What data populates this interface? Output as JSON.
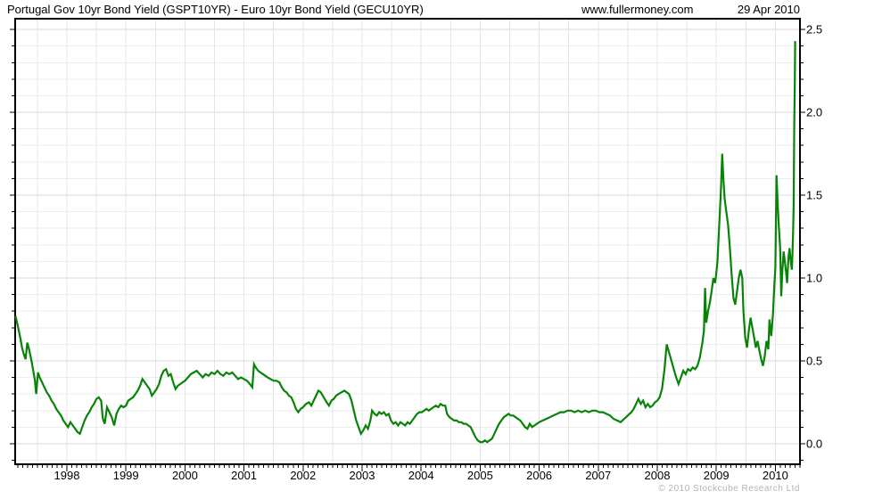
{
  "header": {
    "title": "Portugal Gov 10yr Bond Yield (GSPT10YR) - Euro 10yr Bond Yield (GECU10YR)",
    "site": "www.fullermoney.com",
    "date": "29 Apr 2010"
  },
  "footer": {
    "copyright": "© 2010 Stockcube Research Ltd"
  },
  "chart_data": {
    "type": "line",
    "title": "Portugal Gov 10yr Bond Yield (GSPT10YR) - Euro 10yr Bond Yield (GECU10YR)",
    "series_name": "GSPT10YR minus GECU10YR yield spread",
    "xlabel": "",
    "ylabel": "",
    "y_axis_side": "right",
    "grid": "on",
    "legend": "none",
    "line_color": "#078307",
    "frame_color": "#000000",
    "grid_minor_color": "#ededed",
    "grid_major_color": "#d8d8d8",
    "vgrid_color": "#e4e4e4",
    "x_domain": [
      1997.124,
      2010.417
    ],
    "y_domain": [
      -0.124,
      2.565
    ],
    "x_ticks": [
      "1998",
      "1999",
      "2000",
      "2001",
      "2002",
      "2003",
      "2004",
      "2005",
      "2006",
      "2007",
      "2008",
      "2009",
      "2010"
    ],
    "x_tick_years": [
      1998,
      1999,
      2000,
      2001,
      2002,
      2003,
      2004,
      2005,
      2006,
      2007,
      2008,
      2009,
      2010
    ],
    "y_ticks": [
      "0.0",
      "0.5",
      "1.0",
      "1.5",
      "2.0",
      "2.5"
    ],
    "y_tick_values": [
      0,
      0.5,
      1,
      1.5,
      2,
      2.5
    ],
    "points": [
      [
        1997.13,
        0.77
      ],
      [
        1997.17,
        0.71
      ],
      [
        1997.21,
        0.64
      ],
      [
        1997.24,
        0.58
      ],
      [
        1997.27,
        0.54
      ],
      [
        1997.3,
        0.51
      ],
      [
        1997.33,
        0.61
      ],
      [
        1997.36,
        0.57
      ],
      [
        1997.4,
        0.5
      ],
      [
        1997.43,
        0.44
      ],
      [
        1997.46,
        0.38
      ],
      [
        1997.48,
        0.3
      ],
      [
        1997.51,
        0.43
      ],
      [
        1997.54,
        0.4
      ],
      [
        1997.58,
        0.37
      ],
      [
        1997.62,
        0.34
      ],
      [
        1997.66,
        0.31
      ],
      [
        1997.7,
        0.29
      ],
      [
        1997.74,
        0.26
      ],
      [
        1997.78,
        0.24
      ],
      [
        1997.82,
        0.21
      ],
      [
        1997.86,
        0.19
      ],
      [
        1997.9,
        0.17
      ],
      [
        1997.94,
        0.14
      ],
      [
        1997.98,
        0.12
      ],
      [
        1998.02,
        0.1
      ],
      [
        1998.06,
        0.13
      ],
      [
        1998.1,
        0.11
      ],
      [
        1998.14,
        0.09
      ],
      [
        1998.18,
        0.07
      ],
      [
        1998.22,
        0.06
      ],
      [
        1998.26,
        0.1
      ],
      [
        1998.3,
        0.14
      ],
      [
        1998.34,
        0.17
      ],
      [
        1998.38,
        0.19
      ],
      [
        1998.42,
        0.22
      ],
      [
        1998.46,
        0.24
      ],
      [
        1998.5,
        0.27
      ],
      [
        1998.54,
        0.28
      ],
      [
        1998.58,
        0.26
      ],
      [
        1998.61,
        0.15
      ],
      [
        1998.64,
        0.12
      ],
      [
        1998.68,
        0.22
      ],
      [
        1998.72,
        0.19
      ],
      [
        1998.76,
        0.16
      ],
      [
        1998.8,
        0.11
      ],
      [
        1998.84,
        0.18
      ],
      [
        1998.88,
        0.21
      ],
      [
        1998.92,
        0.23
      ],
      [
        1998.96,
        0.22
      ],
      [
        1999.0,
        0.23
      ],
      [
        1999.04,
        0.26
      ],
      [
        1999.08,
        0.27
      ],
      [
        1999.12,
        0.28
      ],
      [
        1999.16,
        0.3
      ],
      [
        1999.2,
        0.32
      ],
      [
        1999.24,
        0.35
      ],
      [
        1999.28,
        0.39
      ],
      [
        1999.32,
        0.37
      ],
      [
        1999.36,
        0.35
      ],
      [
        1999.4,
        0.33
      ],
      [
        1999.44,
        0.29
      ],
      [
        1999.48,
        0.31
      ],
      [
        1999.52,
        0.33
      ],
      [
        1999.56,
        0.36
      ],
      [
        1999.6,
        0.41
      ],
      [
        1999.64,
        0.44
      ],
      [
        1999.68,
        0.45
      ],
      [
        1999.72,
        0.41
      ],
      [
        1999.76,
        0.42
      ],
      [
        1999.8,
        0.37
      ],
      [
        1999.84,
        0.33
      ],
      [
        1999.88,
        0.35
      ],
      [
        1999.92,
        0.36
      ],
      [
        1999.96,
        0.37
      ],
      [
        2000.0,
        0.38
      ],
      [
        2000.05,
        0.4
      ],
      [
        2000.1,
        0.42
      ],
      [
        2000.15,
        0.43
      ],
      [
        2000.2,
        0.44
      ],
      [
        2000.25,
        0.42
      ],
      [
        2000.3,
        0.4
      ],
      [
        2000.35,
        0.42
      ],
      [
        2000.4,
        0.41
      ],
      [
        2000.45,
        0.43
      ],
      [
        2000.5,
        0.42
      ],
      [
        2000.55,
        0.44
      ],
      [
        2000.6,
        0.42
      ],
      [
        2000.65,
        0.41
      ],
      [
        2000.7,
        0.43
      ],
      [
        2000.75,
        0.42
      ],
      [
        2000.8,
        0.43
      ],
      [
        2000.85,
        0.41
      ],
      [
        2000.9,
        0.39
      ],
      [
        2000.95,
        0.4
      ],
      [
        2001.0,
        0.39
      ],
      [
        2001.05,
        0.38
      ],
      [
        2001.1,
        0.36
      ],
      [
        2001.14,
        0.34
      ],
      [
        2001.17,
        0.48
      ],
      [
        2001.2,
        0.46
      ],
      [
        2001.24,
        0.44
      ],
      [
        2001.28,
        0.43
      ],
      [
        2001.32,
        0.42
      ],
      [
        2001.36,
        0.41
      ],
      [
        2001.4,
        0.4
      ],
      [
        2001.45,
        0.39
      ],
      [
        2001.5,
        0.38
      ],
      [
        2001.55,
        0.38
      ],
      [
        2001.6,
        0.37
      ],
      [
        2001.64,
        0.34
      ],
      [
        2001.68,
        0.32
      ],
      [
        2001.72,
        0.31
      ],
      [
        2001.76,
        0.29
      ],
      [
        2001.8,
        0.28
      ],
      [
        2001.84,
        0.25
      ],
      [
        2001.88,
        0.21
      ],
      [
        2001.92,
        0.19
      ],
      [
        2001.96,
        0.21
      ],
      [
        2002.0,
        0.22
      ],
      [
        2002.05,
        0.24
      ],
      [
        2002.1,
        0.25
      ],
      [
        2002.14,
        0.23
      ],
      [
        2002.18,
        0.26
      ],
      [
        2002.22,
        0.29
      ],
      [
        2002.26,
        0.32
      ],
      [
        2002.3,
        0.31
      ],
      [
        2002.35,
        0.28
      ],
      [
        2002.4,
        0.25
      ],
      [
        2002.44,
        0.23
      ],
      [
        2002.48,
        0.26
      ],
      [
        2002.52,
        0.27
      ],
      [
        2002.56,
        0.29
      ],
      [
        2002.6,
        0.3
      ],
      [
        2002.65,
        0.31
      ],
      [
        2002.7,
        0.32
      ],
      [
        2002.74,
        0.31
      ],
      [
        2002.78,
        0.3
      ],
      [
        2002.82,
        0.26
      ],
      [
        2002.86,
        0.2
      ],
      [
        2002.9,
        0.14
      ],
      [
        2002.94,
        0.1
      ],
      [
        2002.98,
        0.06
      ],
      [
        2003.02,
        0.08
      ],
      [
        2003.06,
        0.11
      ],
      [
        2003.1,
        0.09
      ],
      [
        2003.14,
        0.14
      ],
      [
        2003.17,
        0.2
      ],
      [
        2003.21,
        0.18
      ],
      [
        2003.25,
        0.17
      ],
      [
        2003.29,
        0.19
      ],
      [
        2003.33,
        0.18
      ],
      [
        2003.37,
        0.19
      ],
      [
        2003.41,
        0.17
      ],
      [
        2003.45,
        0.18
      ],
      [
        2003.49,
        0.14
      ],
      [
        2003.53,
        0.12
      ],
      [
        2003.57,
        0.13
      ],
      [
        2003.61,
        0.11
      ],
      [
        2003.65,
        0.13
      ],
      [
        2003.69,
        0.12
      ],
      [
        2003.73,
        0.11
      ],
      [
        2003.77,
        0.13
      ],
      [
        2003.81,
        0.12
      ],
      [
        2003.85,
        0.14
      ],
      [
        2003.89,
        0.16
      ],
      [
        2003.93,
        0.18
      ],
      [
        2003.97,
        0.19
      ],
      [
        2004.01,
        0.19
      ],
      [
        2004.05,
        0.2
      ],
      [
        2004.09,
        0.21
      ],
      [
        2004.13,
        0.2
      ],
      [
        2004.17,
        0.21
      ],
      [
        2004.21,
        0.22
      ],
      [
        2004.25,
        0.23
      ],
      [
        2004.29,
        0.22
      ],
      [
        2004.33,
        0.24
      ],
      [
        2004.37,
        0.23
      ],
      [
        2004.41,
        0.23
      ],
      [
        2004.44,
        0.18
      ],
      [
        2004.48,
        0.16
      ],
      [
        2004.52,
        0.15
      ],
      [
        2004.56,
        0.14
      ],
      [
        2004.6,
        0.14
      ],
      [
        2004.64,
        0.13
      ],
      [
        2004.68,
        0.13
      ],
      [
        2004.72,
        0.12
      ],
      [
        2004.76,
        0.12
      ],
      [
        2004.8,
        0.11
      ],
      [
        2004.84,
        0.1
      ],
      [
        2004.88,
        0.07
      ],
      [
        2004.92,
        0.04
      ],
      [
        2004.96,
        0.02
      ],
      [
        2005.0,
        0.01
      ],
      [
        2005.04,
        0.01
      ],
      [
        2005.08,
        0.02
      ],
      [
        2005.12,
        0.01
      ],
      [
        2005.16,
        0.02
      ],
      [
        2005.2,
        0.03
      ],
      [
        2005.24,
        0.06
      ],
      [
        2005.28,
        0.09
      ],
      [
        2005.32,
        0.12
      ],
      [
        2005.36,
        0.14
      ],
      [
        2005.4,
        0.16
      ],
      [
        2005.44,
        0.17
      ],
      [
        2005.48,
        0.18
      ],
      [
        2005.52,
        0.17
      ],
      [
        2005.56,
        0.17
      ],
      [
        2005.6,
        0.16
      ],
      [
        2005.64,
        0.15
      ],
      [
        2005.68,
        0.14
      ],
      [
        2005.72,
        0.12
      ],
      [
        2005.76,
        0.1
      ],
      [
        2005.8,
        0.09
      ],
      [
        2005.84,
        0.12
      ],
      [
        2005.88,
        0.1
      ],
      [
        2005.92,
        0.11
      ],
      [
        2005.96,
        0.12
      ],
      [
        2006.0,
        0.13
      ],
      [
        2006.06,
        0.14
      ],
      [
        2006.12,
        0.15
      ],
      [
        2006.18,
        0.16
      ],
      [
        2006.24,
        0.17
      ],
      [
        2006.3,
        0.18
      ],
      [
        2006.36,
        0.19
      ],
      [
        2006.42,
        0.19
      ],
      [
        2006.48,
        0.2
      ],
      [
        2006.54,
        0.2
      ],
      [
        2006.6,
        0.19
      ],
      [
        2006.66,
        0.2
      ],
      [
        2006.72,
        0.19
      ],
      [
        2006.78,
        0.2
      ],
      [
        2006.84,
        0.19
      ],
      [
        2006.9,
        0.2
      ],
      [
        2006.96,
        0.2
      ],
      [
        2007.02,
        0.19
      ],
      [
        2007.08,
        0.19
      ],
      [
        2007.14,
        0.18
      ],
      [
        2007.2,
        0.17
      ],
      [
        2007.26,
        0.15
      ],
      [
        2007.32,
        0.14
      ],
      [
        2007.38,
        0.13
      ],
      [
        2007.44,
        0.15
      ],
      [
        2007.5,
        0.17
      ],
      [
        2007.56,
        0.19
      ],
      [
        2007.6,
        0.21
      ],
      [
        2007.64,
        0.24
      ],
      [
        2007.68,
        0.27
      ],
      [
        2007.72,
        0.24
      ],
      [
        2007.76,
        0.26
      ],
      [
        2007.8,
        0.22
      ],
      [
        2007.84,
        0.24
      ],
      [
        2007.88,
        0.22
      ],
      [
        2007.92,
        0.23
      ],
      [
        2007.96,
        0.25
      ],
      [
        2008.0,
        0.26
      ],
      [
        2008.04,
        0.28
      ],
      [
        2008.08,
        0.33
      ],
      [
        2008.12,
        0.44
      ],
      [
        2008.16,
        0.6
      ],
      [
        2008.2,
        0.55
      ],
      [
        2008.24,
        0.5
      ],
      [
        2008.28,
        0.45
      ],
      [
        2008.32,
        0.4
      ],
      [
        2008.36,
        0.36
      ],
      [
        2008.4,
        0.4
      ],
      [
        2008.44,
        0.44
      ],
      [
        2008.48,
        0.42
      ],
      [
        2008.52,
        0.45
      ],
      [
        2008.56,
        0.44
      ],
      [
        2008.6,
        0.46
      ],
      [
        2008.64,
        0.45
      ],
      [
        2008.68,
        0.47
      ],
      [
        2008.72,
        0.52
      ],
      [
        2008.76,
        0.6
      ],
      [
        2008.79,
        0.68
      ],
      [
        2008.81,
        0.94
      ],
      [
        2008.83,
        0.73
      ],
      [
        2008.86,
        0.8
      ],
      [
        2008.89,
        0.85
      ],
      [
        2008.92,
        0.92
      ],
      [
        2008.95,
        1.0
      ],
      [
        2008.98,
        0.97
      ],
      [
        2009.0,
        1.03
      ],
      [
        2009.02,
        1.1
      ],
      [
        2009.04,
        1.25
      ],
      [
        2009.06,
        1.4
      ],
      [
        2009.08,
        1.55
      ],
      [
        2009.1,
        1.75
      ],
      [
        2009.12,
        1.6
      ],
      [
        2009.14,
        1.48
      ],
      [
        2009.17,
        1.4
      ],
      [
        2009.2,
        1.32
      ],
      [
        2009.23,
        1.18
      ],
      [
        2009.26,
        1.02
      ],
      [
        2009.29,
        0.88
      ],
      [
        2009.32,
        0.84
      ],
      [
        2009.35,
        0.92
      ],
      [
        2009.38,
        1.0
      ],
      [
        2009.41,
        1.05
      ],
      [
        2009.44,
        1.0
      ],
      [
        2009.46,
        0.8
      ],
      [
        2009.49,
        0.64
      ],
      [
        2009.52,
        0.58
      ],
      [
        2009.55,
        0.68
      ],
      [
        2009.58,
        0.76
      ],
      [
        2009.61,
        0.7
      ],
      [
        2009.64,
        0.64
      ],
      [
        2009.67,
        0.58
      ],
      [
        2009.7,
        0.62
      ],
      [
        2009.73,
        0.56
      ],
      [
        2009.76,
        0.51
      ],
      [
        2009.79,
        0.47
      ],
      [
        2009.82,
        0.53
      ],
      [
        2009.85,
        0.62
      ],
      [
        2009.88,
        0.57
      ],
      [
        2009.9,
        0.75
      ],
      [
        2009.93,
        0.65
      ],
      [
        2009.96,
        0.78
      ],
      [
        2009.98,
        0.94
      ],
      [
        2010.0,
        1.06
      ],
      [
        2010.02,
        1.62
      ],
      [
        2010.04,
        1.45
      ],
      [
        2010.06,
        1.3
      ],
      [
        2010.08,
        1.19
      ],
      [
        2010.1,
        0.89
      ],
      [
        2010.12,
        1.05
      ],
      [
        2010.14,
        1.16
      ],
      [
        2010.16,
        1.1
      ],
      [
        2010.18,
        1.04
      ],
      [
        2010.2,
        0.97
      ],
      [
        2010.22,
        1.12
      ],
      [
        2010.24,
        1.18
      ],
      [
        2010.26,
        1.1
      ],
      [
        2010.28,
        1.05
      ],
      [
        2010.29,
        1.15
      ],
      [
        2010.3,
        1.28
      ],
      [
        2010.31,
        1.43
      ],
      [
        2010.32,
        1.93
      ],
      [
        2010.33,
        2.18
      ],
      [
        2010.335,
        2.43
      ]
    ]
  }
}
